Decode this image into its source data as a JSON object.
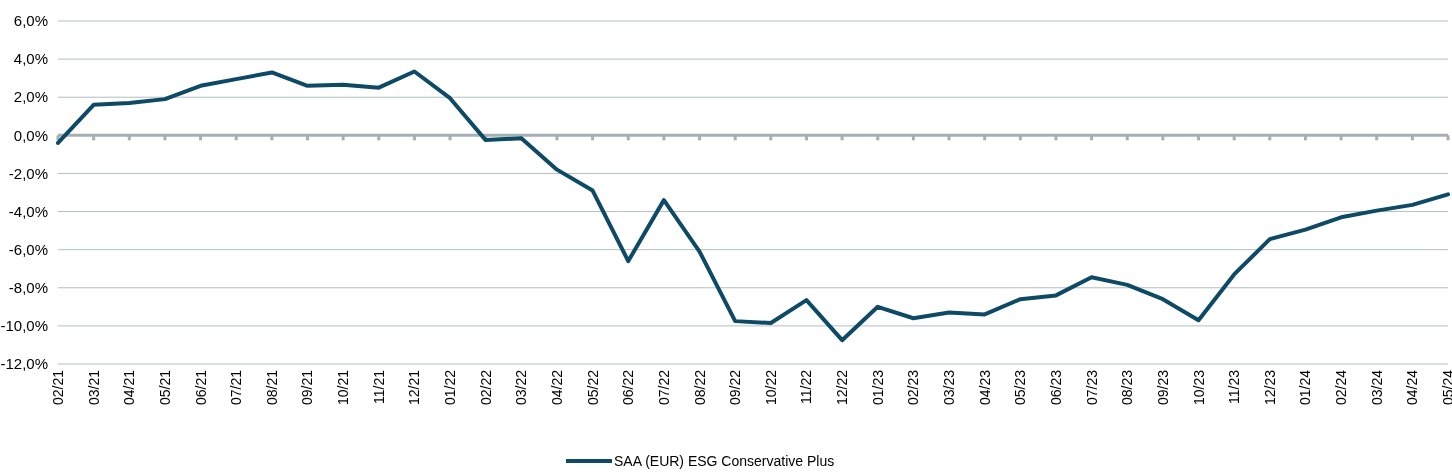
{
  "chart_data": {
    "type": "line",
    "categories": [
      "02/21",
      "03/21",
      "04/21",
      "05/21",
      "06/21",
      "07/21",
      "08/21",
      "09/21",
      "10/21",
      "11/21",
      "12/21",
      "01/22",
      "02/22",
      "03/22",
      "04/22",
      "05/22",
      "06/22",
      "07/22",
      "08/22",
      "09/22",
      "10/22",
      "11/22",
      "12/22",
      "01/23",
      "02/23",
      "03/23",
      "04/23",
      "05/23",
      "06/23",
      "07/23",
      "08/23",
      "09/23",
      "10/23",
      "11/23",
      "12/23",
      "01/24",
      "02/24",
      "03/24",
      "04/24",
      "05/24"
    ],
    "series": [
      {
        "name": "SAA (EUR) ESG Conservative Plus",
        "color": "#0e4a66",
        "values": [
          -0.4,
          1.6,
          1.7,
          1.9,
          2.6,
          2.95,
          3.3,
          2.6,
          2.65,
          2.5,
          3.35,
          1.95,
          -0.25,
          -0.15,
          -1.8,
          -2.9,
          -6.6,
          -3.4,
          -6.1,
          -9.75,
          -9.85,
          -8.65,
          -10.75,
          -9.0,
          -9.6,
          -9.3,
          -9.4,
          -8.6,
          -8.4,
          -7.45,
          -7.85,
          -8.6,
          -9.7,
          -7.3,
          -5.45,
          -4.95,
          -4.3,
          -3.95,
          -3.65,
          -3.1
        ]
      }
    ],
    "ylim": [
      -12,
      6
    ],
    "yticks": [
      {
        "value": -12,
        "label": "-12,0%"
      },
      {
        "value": -10,
        "label": "-10,0%"
      },
      {
        "value": -8,
        "label": "-8,0%"
      },
      {
        "value": -6,
        "label": "-6,0%"
      },
      {
        "value": -4,
        "label": "-4,0%"
      },
      {
        "value": -2,
        "label": "-2,0%"
      },
      {
        "value": 0,
        "label": "0,0%"
      },
      {
        "value": 2,
        "label": "2,0%"
      },
      {
        "value": 4,
        "label": "4,0%"
      },
      {
        "value": 6,
        "label": "6,0%"
      }
    ],
    "grid": "y",
    "legend": "bottom",
    "marker": "none",
    "line_style": "solid"
  }
}
